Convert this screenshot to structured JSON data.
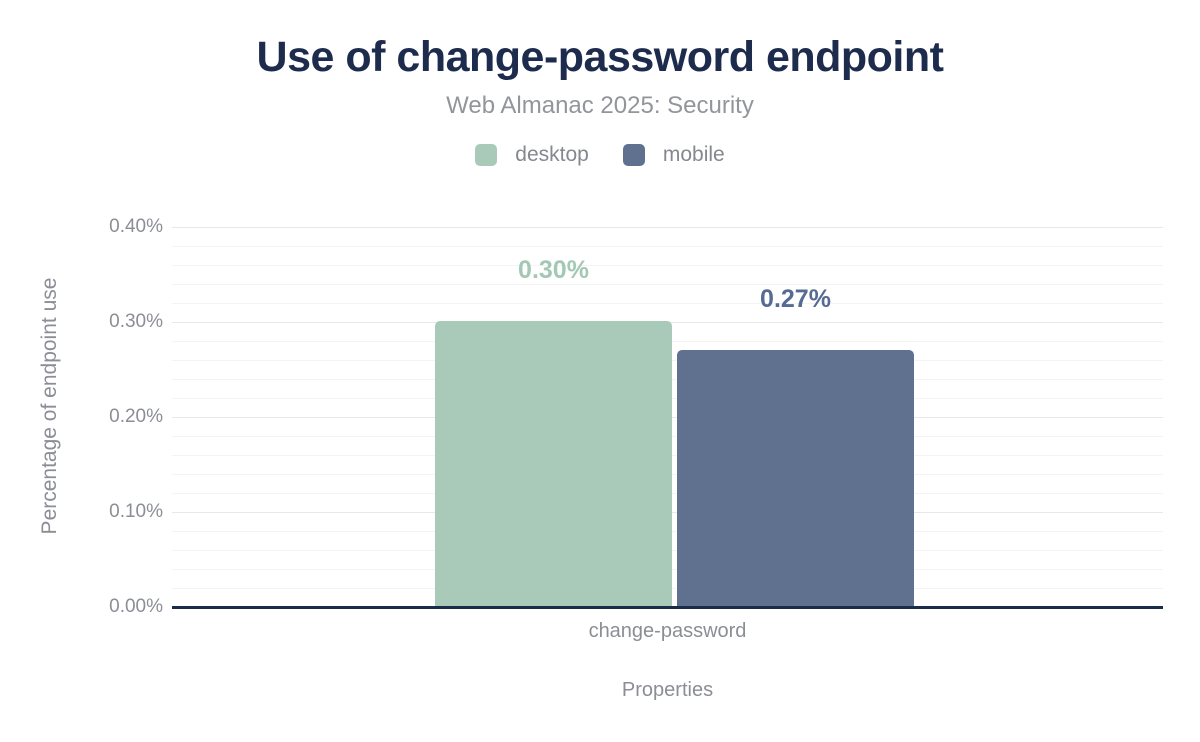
{
  "header": {
    "title": "Use of change-password endpoint",
    "subtitle": "Web Almanac 2025: Security"
  },
  "colors": {
    "title_text": "#1d2b4c",
    "subtitle_text": "#92959b",
    "muted_text": "#8b8e94",
    "axis_line": "#1b2b4a",
    "grid_major": "#e7e8ea",
    "grid_minor": "#f4f4f6",
    "background": "#ffffff"
  },
  "chart_data": {
    "type": "bar",
    "title": "Use of change-password endpoint",
    "subtitle": "Web Almanac 2025: Security",
    "categories": [
      "change-password"
    ],
    "series": [
      {
        "name": "desktop",
        "values": [
          0.3
        ],
        "data_labels": [
          "0.30%"
        ],
        "color": "#a9cab8",
        "label_color": "#a3c8b4"
      },
      {
        "name": "mobile",
        "values": [
          0.27
        ],
        "data_labels": [
          "0.27%"
        ],
        "color": "#5f718e",
        "label_color": "#556b92"
      }
    ],
    "xlabel": "Properties",
    "ylabel": "Percentage of endpoint use",
    "ylim": [
      0,
      0.4
    ],
    "yticks": [
      {
        "value": 0.4,
        "label": "0.40%"
      },
      {
        "value": 0.3,
        "label": "0.30%"
      },
      {
        "value": 0.2,
        "label": "0.20%"
      },
      {
        "value": 0.1,
        "label": "0.10%"
      },
      {
        "value": 0.0,
        "label": "0.00%"
      }
    ],
    "minor_tick_step": 0.02,
    "grid": true,
    "legend_position": "top"
  }
}
